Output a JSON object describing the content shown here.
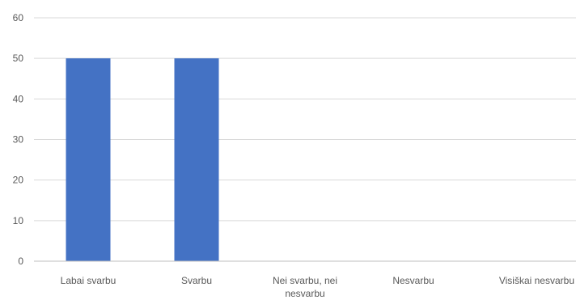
{
  "chart_data": {
    "type": "bar",
    "categories": [
      "Labai svarbu",
      "Svarbu",
      "Nei svarbu, nei nesvarbu",
      "Nesvarbu",
      "Visiškai nesvarbu"
    ],
    "category_label_lines": [
      [
        "Labai svarbu"
      ],
      [
        "Svarbu"
      ],
      [
        "Nei svarbu, nei",
        "nesvarbu"
      ],
      [
        "Nesvarbu"
      ],
      [
        "Visiškai nesvarbu"
      ]
    ],
    "values": [
      50,
      50,
      0,
      0,
      0
    ],
    "ylim": [
      0,
      60
    ],
    "yticks": [
      0,
      10,
      20,
      30,
      40,
      50,
      60
    ],
    "grid": true,
    "legend": "none",
    "bar_color": "#4472C4",
    "grid_color": "#D9D9D9",
    "axis_color": "#BFBFBF",
    "title": "",
    "xlabel": "",
    "ylabel": ""
  }
}
